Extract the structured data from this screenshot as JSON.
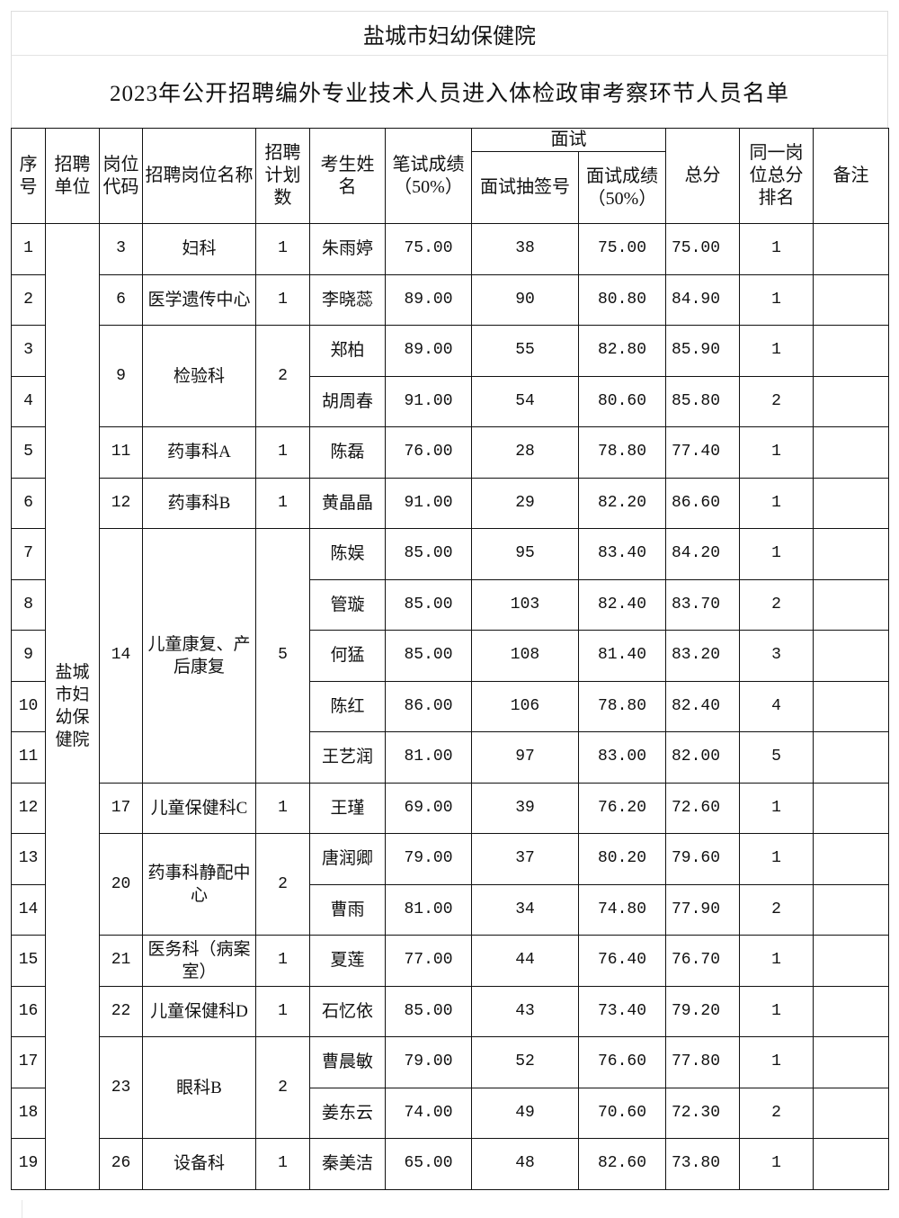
{
  "title": "盐城市妇幼保健院",
  "subtitle": "2023年公开招聘编外专业技术人员进入体检政审考察环节人员名单",
  "headers": {
    "seq": "序号",
    "unit": "招聘单位",
    "code": "岗位代码",
    "post": "招聘岗位名称",
    "plan": "招聘计划数",
    "name": "考生姓名",
    "written": "笔试成绩（50%）",
    "interview": "面试",
    "lot": "面试抽签号",
    "interview_score": "面试成绩（50%）",
    "total": "总分",
    "rank": "同一岗位总分排名",
    "remark": "备注"
  },
  "unit": "盐城市妇幼保健院",
  "groups": [
    {
      "code": "3",
      "post": "妇科",
      "plan": "1",
      "rows": [
        {
          "seq": "1",
          "name": "朱雨婷",
          "written": "75.00",
          "lot": "38",
          "interview": "75.00",
          "total": "75.00",
          "rank": "1",
          "remark": ""
        }
      ]
    },
    {
      "code": "6",
      "post": "医学遗传中心",
      "plan": "1",
      "rows": [
        {
          "seq": "2",
          "name": "李晓蕊",
          "written": "89.00",
          "lot": "90",
          "interview": "80.80",
          "total": "84.90",
          "rank": "1",
          "remark": ""
        }
      ]
    },
    {
      "code": "9",
      "post": "检验科",
      "plan": "2",
      "rows": [
        {
          "seq": "3",
          "name": "郑柏",
          "written": "89.00",
          "lot": "55",
          "interview": "82.80",
          "total": "85.90",
          "rank": "1",
          "remark": ""
        },
        {
          "seq": "4",
          "name": "胡周春",
          "written": "91.00",
          "lot": "54",
          "interview": "80.60",
          "total": "85.80",
          "rank": "2",
          "remark": ""
        }
      ]
    },
    {
      "code": "11",
      "post": "药事科A",
      "plan": "1",
      "rows": [
        {
          "seq": "5",
          "name": "陈磊",
          "written": "76.00",
          "lot": "28",
          "interview": "78.80",
          "total": "77.40",
          "rank": "1",
          "remark": ""
        }
      ]
    },
    {
      "code": "12",
      "post": "药事科B",
      "plan": "1",
      "rows": [
        {
          "seq": "6",
          "name": "黄晶晶",
          "written": "91.00",
          "lot": "29",
          "interview": "82.20",
          "total": "86.60",
          "rank": "1",
          "remark": ""
        }
      ]
    },
    {
      "code": "14",
      "post": "儿童康复、产后康复",
      "plan": "5",
      "rows": [
        {
          "seq": "7",
          "name": "陈娱",
          "written": "85.00",
          "lot": "95",
          "interview": "83.40",
          "total": "84.20",
          "rank": "1",
          "remark": ""
        },
        {
          "seq": "8",
          "name": "管璇",
          "written": "85.00",
          "lot": "103",
          "interview": "82.40",
          "total": "83.70",
          "rank": "2",
          "remark": ""
        },
        {
          "seq": "9",
          "name": "何猛",
          "written": "85.00",
          "lot": "108",
          "interview": "81.40",
          "total": "83.20",
          "rank": "3",
          "remark": ""
        },
        {
          "seq": "10",
          "name": "陈红",
          "written": "86.00",
          "lot": "106",
          "interview": "78.80",
          "total": "82.40",
          "rank": "4",
          "remark": ""
        },
        {
          "seq": "11",
          "name": "王艺润",
          "written": "81.00",
          "lot": "97",
          "interview": "83.00",
          "total": "82.00",
          "rank": "5",
          "remark": ""
        }
      ]
    },
    {
      "code": "17",
      "post": "儿童保健科C",
      "plan": "1",
      "rows": [
        {
          "seq": "12",
          "name": "王瑾",
          "written": "69.00",
          "lot": "39",
          "interview": "76.20",
          "total": "72.60",
          "rank": "1",
          "remark": ""
        }
      ]
    },
    {
      "code": "20",
      "post": "药事科静配中心",
      "plan": "2",
      "rows": [
        {
          "seq": "13",
          "name": "唐润卿",
          "written": "79.00",
          "lot": "37",
          "interview": "80.20",
          "total": "79.60",
          "rank": "1",
          "remark": ""
        },
        {
          "seq": "14",
          "name": "曹雨",
          "written": "81.00",
          "lot": "34",
          "interview": "74.80",
          "total": "77.90",
          "rank": "2",
          "remark": ""
        }
      ]
    },
    {
      "code": "21",
      "post": "医务科（病案室）",
      "plan": "1",
      "rows": [
        {
          "seq": "15",
          "name": "夏莲",
          "written": "77.00",
          "lot": "44",
          "interview": "76.40",
          "total": "76.70",
          "rank": "1",
          "remark": ""
        }
      ]
    },
    {
      "code": "22",
      "post": "儿童保健科D",
      "plan": "1",
      "rows": [
        {
          "seq": "16",
          "name": "石忆依",
          "written": "85.00",
          "lot": "43",
          "interview": "73.40",
          "total": "79.20",
          "rank": "1",
          "remark": ""
        }
      ]
    },
    {
      "code": "23",
      "post": "眼科B",
      "plan": "2",
      "rows": [
        {
          "seq": "17",
          "name": "曹晨敏",
          "written": "79.00",
          "lot": "52",
          "interview": "76.60",
          "total": "77.80",
          "rank": "1",
          "remark": ""
        },
        {
          "seq": "18",
          "name": "姜东云",
          "written": "74.00",
          "lot": "49",
          "interview": "70.60",
          "total": "72.30",
          "rank": "2",
          "remark": ""
        }
      ]
    },
    {
      "code": "26",
      "post": "设备科",
      "plan": "1",
      "rows": [
        {
          "seq": "19",
          "name": "秦美洁",
          "written": "65.00",
          "lot": "48",
          "interview": "82.60",
          "total": "73.80",
          "rank": "1",
          "remark": ""
        }
      ]
    }
  ]
}
